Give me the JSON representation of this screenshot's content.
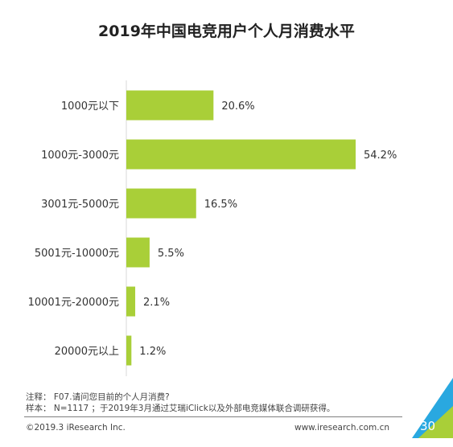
{
  "chart_data": {
    "type": "bar",
    "orientation": "horizontal",
    "title": "2019年中国电竞用户个人月消费水平",
    "categories": [
      "1000元以下",
      "1000元-3000元",
      "3001元-5000元",
      "5001元-10000元",
      "10001元-20000元",
      "20000元以上"
    ],
    "values": [
      20.6,
      54.2,
      16.5,
      5.5,
      2.1,
      1.2
    ],
    "value_labels": [
      "20.6%",
      "54.2%",
      "16.5%",
      "5.5%",
      "2.1%",
      "1.2%"
    ],
    "unit": "%",
    "xlim": [
      0,
      60
    ],
    "grid": false,
    "bar_color": "#a9cf38"
  },
  "notes": {
    "line1": "注释：  F07.请问您目前的个人月消费?",
    "line2": "样本：  N=1117 ；于2019年3月通过艾瑞iClick以及外部电竞媒体联合调研获得。"
  },
  "footer": {
    "copyright": "©2019.3 iResearch Inc.",
    "website": "www.iresearch.com.cn",
    "page_number": "30"
  },
  "colors": {
    "triangle_blue": "#29a8e0",
    "triangle_green": "#a9cf38"
  }
}
